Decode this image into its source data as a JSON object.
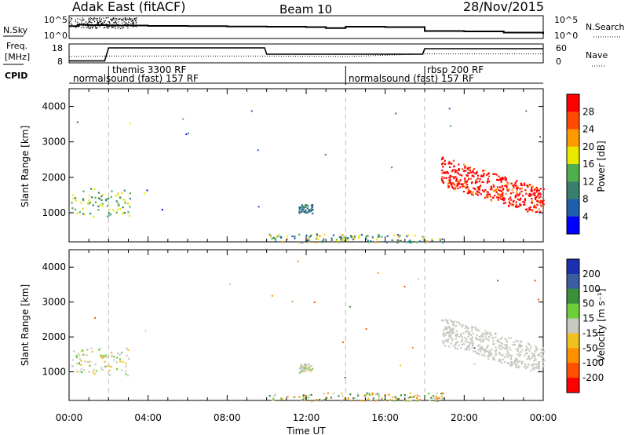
{
  "header": {
    "station": "Adak East (fitACF)",
    "beam": "Beam 10",
    "date": "28/Nov/2015"
  },
  "summary_panels": {
    "nsky": {
      "label": "N.Sky",
      "right_label": "N.Search",
      "left_ticks": [
        "10^5",
        "10^0"
      ],
      "right_ticks": [
        "10^5",
        "10^0"
      ]
    },
    "freq": {
      "label_line1": "Freq.",
      "label_line2": "[MHz]",
      "left_ticks": [
        "18",
        "8"
      ],
      "right_ticks": [
        "60",
        "0"
      ],
      "right_label": "Nave"
    },
    "cpid": {
      "label": "CPID",
      "segments": [
        {
          "text": "normalsound (fast) 157 RF",
          "start_h": 0
        },
        {
          "text": "themis 3300 RF",
          "start_h": 2
        },
        {
          "text": "normalsound (fast) 157 RF",
          "start_h": 14
        },
        {
          "text": "rbsp 200 RF",
          "start_h": 18
        }
      ]
    }
  },
  "panels": {
    "power": {
      "ylabel": "Slant Range [km]",
      "yticks": [
        "1000",
        "2000",
        "3000",
        "4000"
      ],
      "colorbar_label": "Power [dB]",
      "colorbar_ticks": [
        "4",
        "8",
        "12",
        "16",
        "20",
        "24",
        "28"
      ],
      "colorbar_colors": [
        "#0000ff",
        "#1f5fae",
        "#3a7f6e",
        "#4faf4f",
        "#e9e900",
        "#ff9900",
        "#ff4a00",
        "#ff0000"
      ]
    },
    "velocity": {
      "ylabel": "Slant Range [km]",
      "yticks": [
        "1000",
        "2000",
        "3000",
        "4000"
      ],
      "colorbar_label": "Velocity [m s⁻¹]",
      "colorbar_ticks": [
        "200",
        "100",
        "50",
        "15",
        "-15",
        "-50",
        "-100",
        "-200"
      ],
      "colorbar_colors": [
        "#1c2fb0",
        "#3b5fa0",
        "#3a8f3a",
        "#6ccf3a",
        "#c8c8c0",
        "#f0c020",
        "#ff9000",
        "#ff5000",
        "#ff0000"
      ]
    }
  },
  "xaxis": {
    "label": "Time UT",
    "ticks": [
      "00:00",
      "04:00",
      "08:00",
      "12:00",
      "16:00",
      "20:00",
      "00:00"
    ]
  },
  "chart_data": {
    "type": "heatmap",
    "title": "Adak East (fitACF)",
    "subtitle": "Beam 10",
    "x": {
      "label": "Time UT",
      "range_hours": [
        0,
        24
      ],
      "ticks": [
        "00:00",
        "04:00",
        "08:00",
        "12:00",
        "16:00",
        "20:00",
        "00:00"
      ]
    },
    "y": {
      "label": "Slant Range [km]",
      "range_km": [
        180,
        4500
      ],
      "ticks": [
        1000,
        2000,
        3000,
        4000
      ]
    },
    "mode_change_hours": [
      2,
      14,
      18
    ],
    "power_scale_db": [
      0,
      30
    ],
    "velocity_scale_ms": [
      -250,
      250
    ],
    "nsky": [
      {
        "t": 0,
        "v": 0.55
      },
      {
        "t": 0.5,
        "v": 0.62
      },
      {
        "t": 1,
        "v": 0.6
      },
      {
        "t": 2,
        "v": 0.58
      },
      {
        "t": 4,
        "v": 0.56
      },
      {
        "t": 6,
        "v": 0.55
      },
      {
        "t": 8,
        "v": 0.53
      },
      {
        "t": 10,
        "v": 0.52
      },
      {
        "t": 12,
        "v": 0.5
      },
      {
        "t": 13,
        "v": 0.45
      },
      {
        "t": 14,
        "v": 0.52
      },
      {
        "t": 16,
        "v": 0.5
      },
      {
        "t": 17.9,
        "v": 0.5
      },
      {
        "t": 18,
        "v": 0.3
      },
      {
        "t": 20,
        "v": 0.28
      },
      {
        "t": 22,
        "v": 0.22
      },
      {
        "t": 24,
        "v": 0.15
      }
    ],
    "frequency_mhz": [
      {
        "t": 0,
        "v": 8.2
      },
      {
        "t": 1.8,
        "v": 8.2
      },
      {
        "t": 2,
        "v": 16.5
      },
      {
        "t": 9.9,
        "v": 16.5
      },
      {
        "t": 10,
        "v": 12.5
      },
      {
        "t": 17.9,
        "v": 12.5
      },
      {
        "t": 18,
        "v": 16.0
      },
      {
        "t": 24,
        "v": 16.0
      }
    ],
    "nave": [
      {
        "t": 0,
        "v": 18
      },
      {
        "t": 2,
        "v": 20
      },
      {
        "t": 10,
        "v": 20
      },
      {
        "t": 14,
        "v": 18
      },
      {
        "t": 18,
        "v": 28
      },
      {
        "t": 24,
        "v": 28
      }
    ],
    "scatter_regions": [
      {
        "name": "early",
        "t": [
          0.1,
          3.1
        ],
        "range_km": [
          900,
          1700
        ],
        "power_db": [
          8,
          18
        ],
        "velocity_ms": [
          -30,
          30
        ],
        "density": 0.35
      },
      {
        "name": "11-12UT",
        "t": [
          11.6,
          12.3
        ],
        "range_km": [
          1000,
          1250
        ],
        "power_db": [
          4,
          12
        ],
        "velocity_ms": [
          -20,
          20
        ],
        "density": 0.85
      },
      {
        "name": "ground",
        "t": [
          10,
          19
        ],
        "range_km": [
          180,
          420
        ],
        "power_db": [
          4,
          22
        ],
        "velocity_ms": [
          -60,
          60
        ],
        "density": 0.75
      },
      {
        "name": "evening",
        "t": [
          18.8,
          24
        ],
        "range_km": [
          900,
          2600
        ],
        "power_db": [
          16,
          30
        ],
        "velocity_ms": [
          -15,
          15
        ],
        "density": 0.9
      }
    ]
  }
}
